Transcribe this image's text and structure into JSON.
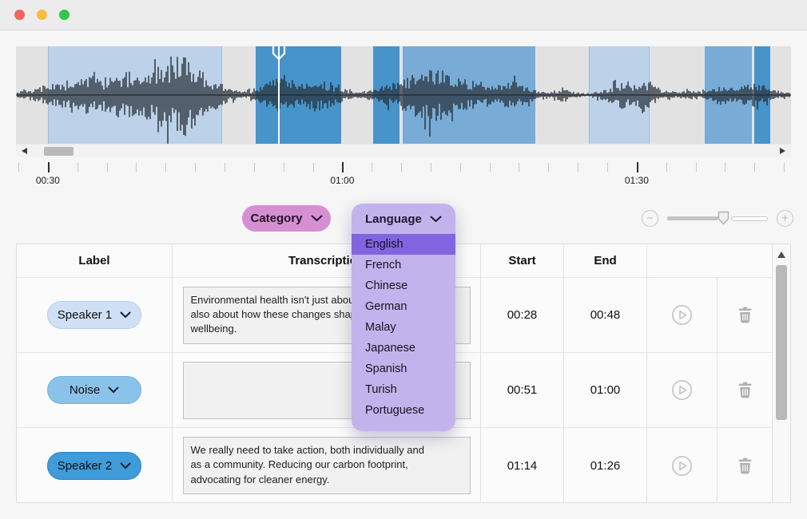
{
  "titlebar": {
    "buttons": [
      "close",
      "minimize",
      "zoom"
    ]
  },
  "colors": {
    "traffic_red": "#f4645d",
    "traffic_yellow": "#fbbc3f",
    "traffic_green": "#32c84a",
    "region_light": "#bdd2e9",
    "region_medium": "#78acd7",
    "region_dark": "#4794ca",
    "category_pill": "#d78fd3",
    "language_panel": "#c3b3ec",
    "language_selected": "#8165e0",
    "speaker1_pill": "#cfe0f6",
    "noise_pill": "#8ac2ea",
    "speaker2_pill": "#3f9cd9"
  },
  "waveform": {
    "regions": [
      {
        "shade": "light",
        "left_pct": 4.12,
        "width_pct": 22.5
      },
      {
        "shade": "dark",
        "left_pct": 30.9,
        "width_pct": 11.1
      },
      {
        "shade": "dark",
        "left_pct": 46.1,
        "width_pct": 3.4
      },
      {
        "shade": "medium",
        "left_pct": 49.9,
        "width_pct": 17.1
      },
      {
        "shade": "light",
        "left_pct": 73.9,
        "width_pct": 7.9
      },
      {
        "shade": "medium",
        "left_pct": 88.9,
        "width_pct": 6.0
      },
      {
        "shade": "dark",
        "left_pct": 95.3,
        "width_pct": 2.0
      }
    ],
    "playhead_pct": 33.8
  },
  "timeline": {
    "tick_count": 27,
    "first_tick_pct": 0.31,
    "tick_spacing_pct": 3.799,
    "labels": [
      {
        "text": "00:30",
        "tick": 1
      },
      {
        "text": "01:00",
        "tick": 11
      },
      {
        "text": "01:30",
        "tick": 21
      }
    ]
  },
  "controls": {
    "category": {
      "label": "Category"
    },
    "language": {
      "label": "Language",
      "selected": "English",
      "options": [
        "English",
        "French",
        "Chinese",
        "German",
        "Malay",
        "Japanese",
        "Spanish",
        "Turish",
        "Portuguese"
      ]
    },
    "zoom": {
      "minus_label": "−",
      "plus_label": "+",
      "value_pct": 52
    }
  },
  "table": {
    "headers": {
      "label": "Label",
      "transcription": "Transcription",
      "start": "Start",
      "end": "End"
    },
    "rows": [
      {
        "label": "Speaker 1",
        "pill": "light",
        "transcript": "Environmental health isn't just about nature, but\nalso about how these changes shape our emotional\nwellbeing.",
        "start": "00:28",
        "end": "00:48"
      },
      {
        "label": "Noise",
        "pill": "medium",
        "transcript": "",
        "start": "00:51",
        "end": "01:00"
      },
      {
        "label": "Speaker 2",
        "pill": "dark",
        "transcript": "We really need to take action, both individually and\nas a community. Reducing our carbon footprint,\nadvocating for cleaner energy.",
        "start": "01:14",
        "end": "01:26"
      }
    ]
  }
}
